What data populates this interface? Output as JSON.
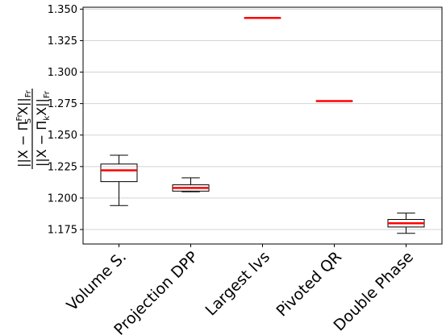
{
  "chart_data": {
    "type": "box",
    "title": "",
    "xlabel": "",
    "ylabel": {
      "numerator": {
        "base": "||X − Π",
        "sup": "Fr",
        "sub": "S",
        "rest": "X||",
        "norm_sub": "Fr"
      },
      "denominator": {
        "base": "||X − Π",
        "sub": "k",
        "rest": "X||",
        "norm_sub": "Fr"
      }
    },
    "ylim": [
      1.1635,
      1.3515
    ],
    "yticks": [
      1.175,
      1.2,
      1.225,
      1.25,
      1.275,
      1.3,
      1.325,
      1.35
    ],
    "ytick_labels": [
      "1.175",
      "1.200",
      "1.225",
      "1.250",
      "1.275",
      "1.300",
      "1.325",
      "1.350"
    ],
    "grid": "horizontal",
    "median_color": "#ff0000",
    "box_color": "#000000",
    "categories": [
      "Volume S.",
      "Projection DPP",
      "Largest lvs",
      "Pivoted QR",
      "Double Phase"
    ],
    "boxes": [
      {
        "whislo": 1.194,
        "q1": 1.213,
        "med": 1.222,
        "q3": 1.227,
        "whishi": 1.234
      },
      {
        "whislo": 1.205,
        "q1": 1.2055,
        "med": 1.208,
        "q3": 1.2105,
        "whishi": 1.216
      },
      {
        "whislo": 1.343,
        "q1": 1.343,
        "med": 1.343,
        "q3": 1.343,
        "whishi": 1.343
      },
      {
        "whislo": 1.277,
        "q1": 1.277,
        "med": 1.277,
        "q3": 1.277,
        "whishi": 1.277
      },
      {
        "whislo": 1.172,
        "q1": 1.177,
        "med": 1.18,
        "q3": 1.183,
        "whishi": 1.188
      }
    ]
  }
}
